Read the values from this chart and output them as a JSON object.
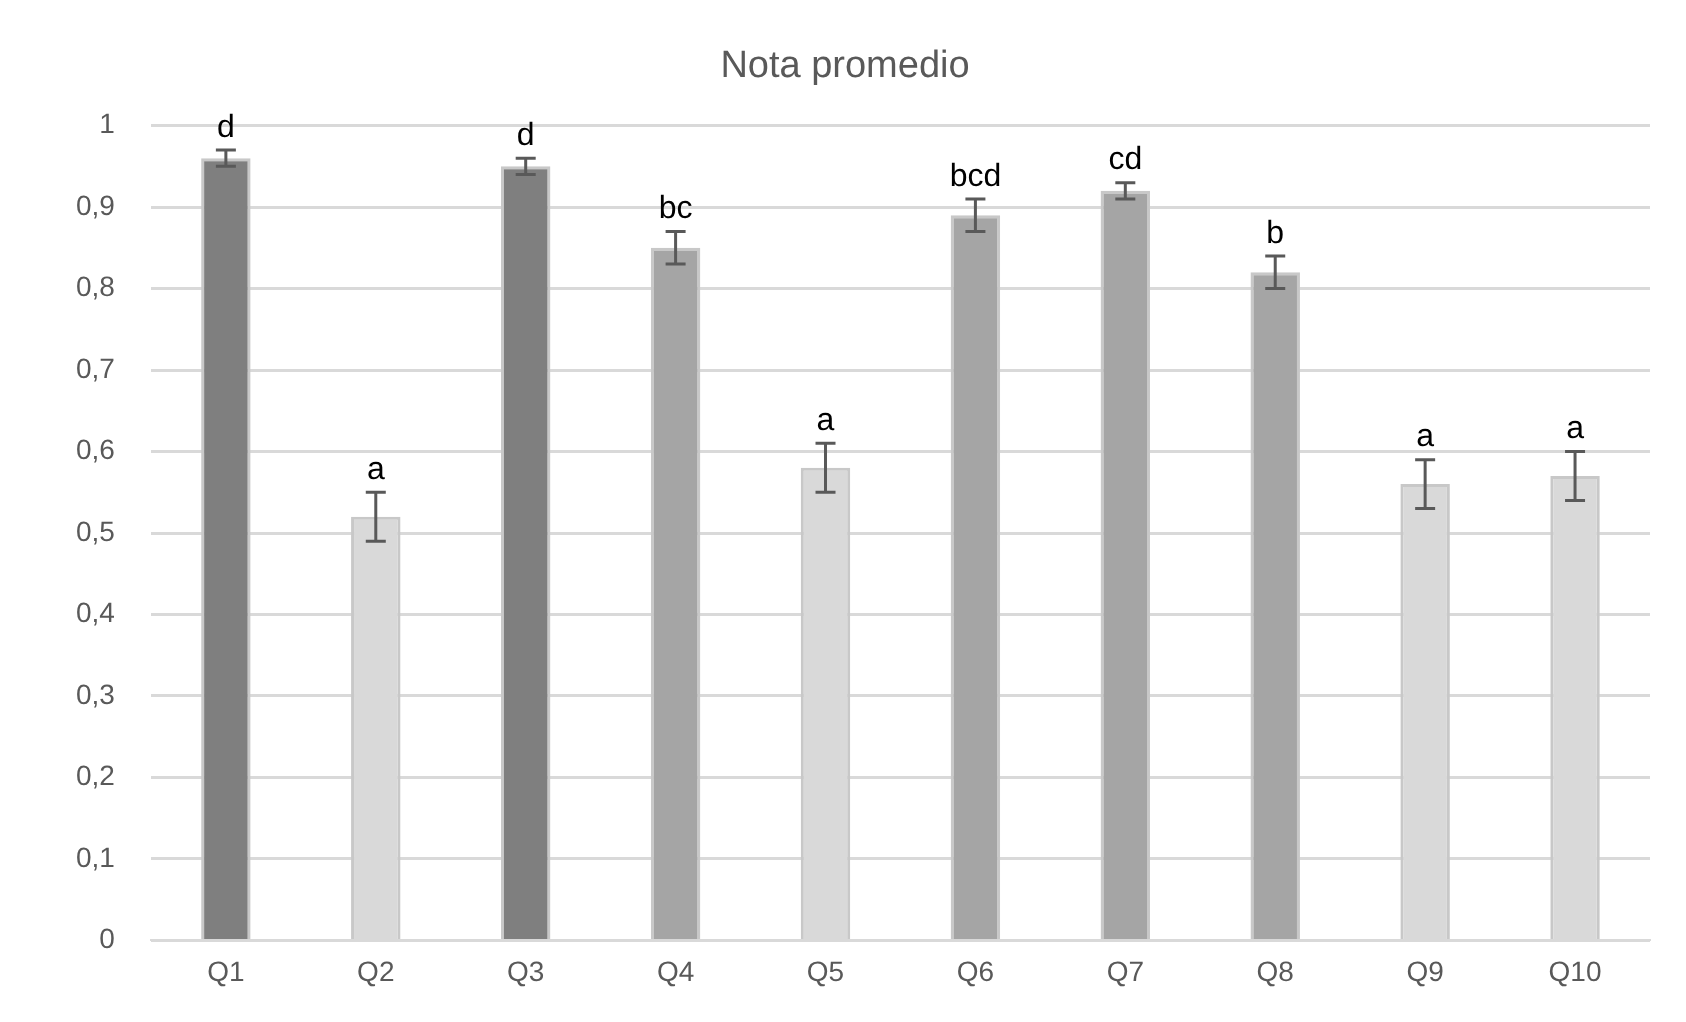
{
  "chart_data": {
    "type": "bar",
    "title": "Nota promedio",
    "categories": [
      "Q1",
      "Q2",
      "Q3",
      "Q4",
      "Q5",
      "Q6",
      "Q7",
      "Q8",
      "Q9",
      "Q10"
    ],
    "values": [
      0.96,
      0.52,
      0.95,
      0.85,
      0.58,
      0.89,
      0.92,
      0.82,
      0.56,
      0.57
    ],
    "colors": [
      "#7f7f7f",
      "#d9d9d9",
      "#7f7f7f",
      "#a5a5a5",
      "#d9d9d9",
      "#a5a5a5",
      "#a5a5a5",
      "#a5a5a5",
      "#d9d9d9",
      "#d9d9d9"
    ],
    "errors": [
      0.01,
      0.03,
      0.01,
      0.02,
      0.03,
      0.02,
      0.01,
      0.02,
      0.03,
      0.03
    ],
    "ylim": [
      0,
      1
    ],
    "yticks": [
      0,
      {
        "value": 0.1,
        "label": "0,1"
      },
      {
        "value": 0.2,
        "label": "0,2"
      },
      {
        "value": 0.3,
        "label": "0,3"
      },
      {
        "value": 0.4,
        "label": "0,4"
      },
      {
        "value": 0.5,
        "label": "0,5"
      },
      {
        "value": 0.6,
        "label": "0,6"
      },
      {
        "value": 0.7,
        "label": "0,7"
      },
      {
        "value": 0.8,
        "label": "0,8"
      },
      {
        "value": 0.9,
        "label": "0,9"
      },
      1
    ],
    "grid": "y",
    "legend": false,
    "annotations": [
      {
        "text": "d",
        "x": "Q1",
        "y": 0.97
      },
      {
        "text": "a",
        "x": "Q2",
        "y": 0.55
      },
      {
        "text": "d",
        "x": "Q3",
        "y": 0.96
      },
      {
        "text": "bc",
        "x": "Q4",
        "y": 0.87
      },
      {
        "text": "a",
        "x": "Q5",
        "y": 0.61
      },
      {
        "text": "bcd",
        "x": "Q6",
        "y": 0.91
      },
      {
        "text": "cd",
        "x": "Q7",
        "y": 0.93
      },
      {
        "text": "b",
        "x": "Q8",
        "y": 0.84
      },
      {
        "text": "a",
        "x": "Q9",
        "y": 0.59
      },
      {
        "text": "a",
        "x": "Q10",
        "y": 0.6
      }
    ]
  }
}
